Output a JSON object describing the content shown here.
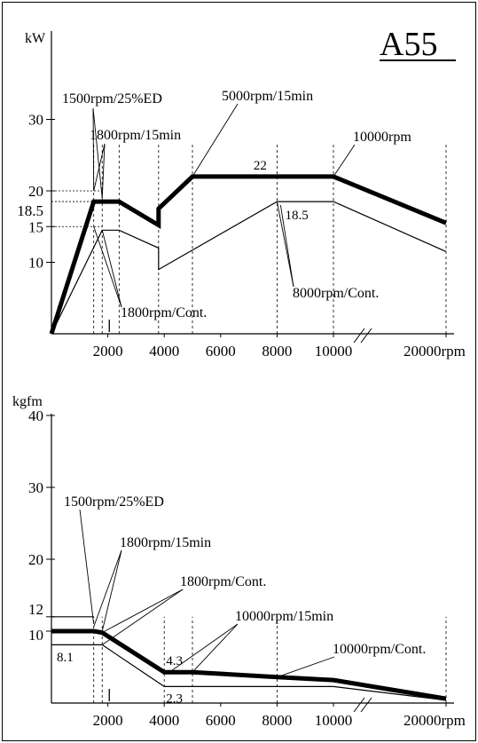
{
  "model": "A55",
  "chart_data": [
    {
      "type": "line",
      "ylabel": "kW",
      "xunit": "rpm",
      "x_tick_labels": [
        "2000",
        "4000",
        "6000",
        "8000",
        "10000",
        "20000rpm"
      ],
      "y_tick_labels": [
        "10",
        "15",
        "18.5",
        "20",
        "30"
      ],
      "x_is_broken_axis": true,
      "series": [
        {
          "points": [
            [
              0,
              0
            ],
            [
              1500,
              18.5
            ],
            [
              1800,
              18.5
            ],
            [
              2400,
              18.5
            ],
            [
              3800,
              15.2
            ],
            [
              3800,
              17.5
            ],
            [
              5000,
              22
            ],
            [
              10000,
              22
            ],
            [
              20000,
              15.5
            ]
          ]
        },
        {
          "points": [
            [
              0,
              0
            ],
            [
              1800,
              14.5
            ],
            [
              2400,
              14.5
            ],
            [
              3800,
              12
            ],
            [
              3800,
              9
            ],
            [
              8000,
              18.5
            ],
            [
              10000,
              18.5
            ],
            [
              20000,
              11.5
            ]
          ]
        }
      ],
      "value_labels": [
        "22",
        "18.5"
      ],
      "annotations": [
        "1500rpm/25%ED",
        "1800rpm/15min",
        "5000rpm/15min",
        "10000rpm",
        "1800rpm/Cont.",
        "8000rpm/Cont."
      ]
    },
    {
      "type": "line",
      "ylabel": "kgfm",
      "xunit": "rpm",
      "x_tick_labels": [
        "2000",
        "4000",
        "6000",
        "8000",
        "10000",
        "20000rpm"
      ],
      "y_tick_labels": [
        "10",
        "12",
        "20",
        "30",
        "40"
      ],
      "x_is_broken_axis": true,
      "series": [
        {
          "points": [
            [
              0,
              10
            ],
            [
              1500,
              10
            ],
            [
              1800,
              9.8
            ],
            [
              4000,
              4.3
            ],
            [
              5000,
              4.3
            ],
            [
              8000,
              3.6
            ],
            [
              10000,
              3.2
            ],
            [
              20000,
              0.6
            ]
          ]
        },
        {
          "points": [
            [
              0,
              12
            ],
            [
              1500,
              12
            ]
          ]
        },
        {
          "points": [
            [
              0,
              8.1
            ],
            [
              1800,
              8.1
            ]
          ]
        },
        {
          "points": [
            [
              4000,
              2.3
            ],
            [
              10000,
              2.3
            ]
          ]
        }
      ],
      "value_labels": [
        "8.1",
        "4.3",
        "2.3"
      ],
      "annotations": [
        "1500rpm/25%ED",
        "1800rpm/15min",
        "1800rpm/Cont.",
        "10000rpm/15min",
        "10000rpm/Cont."
      ]
    }
  ]
}
